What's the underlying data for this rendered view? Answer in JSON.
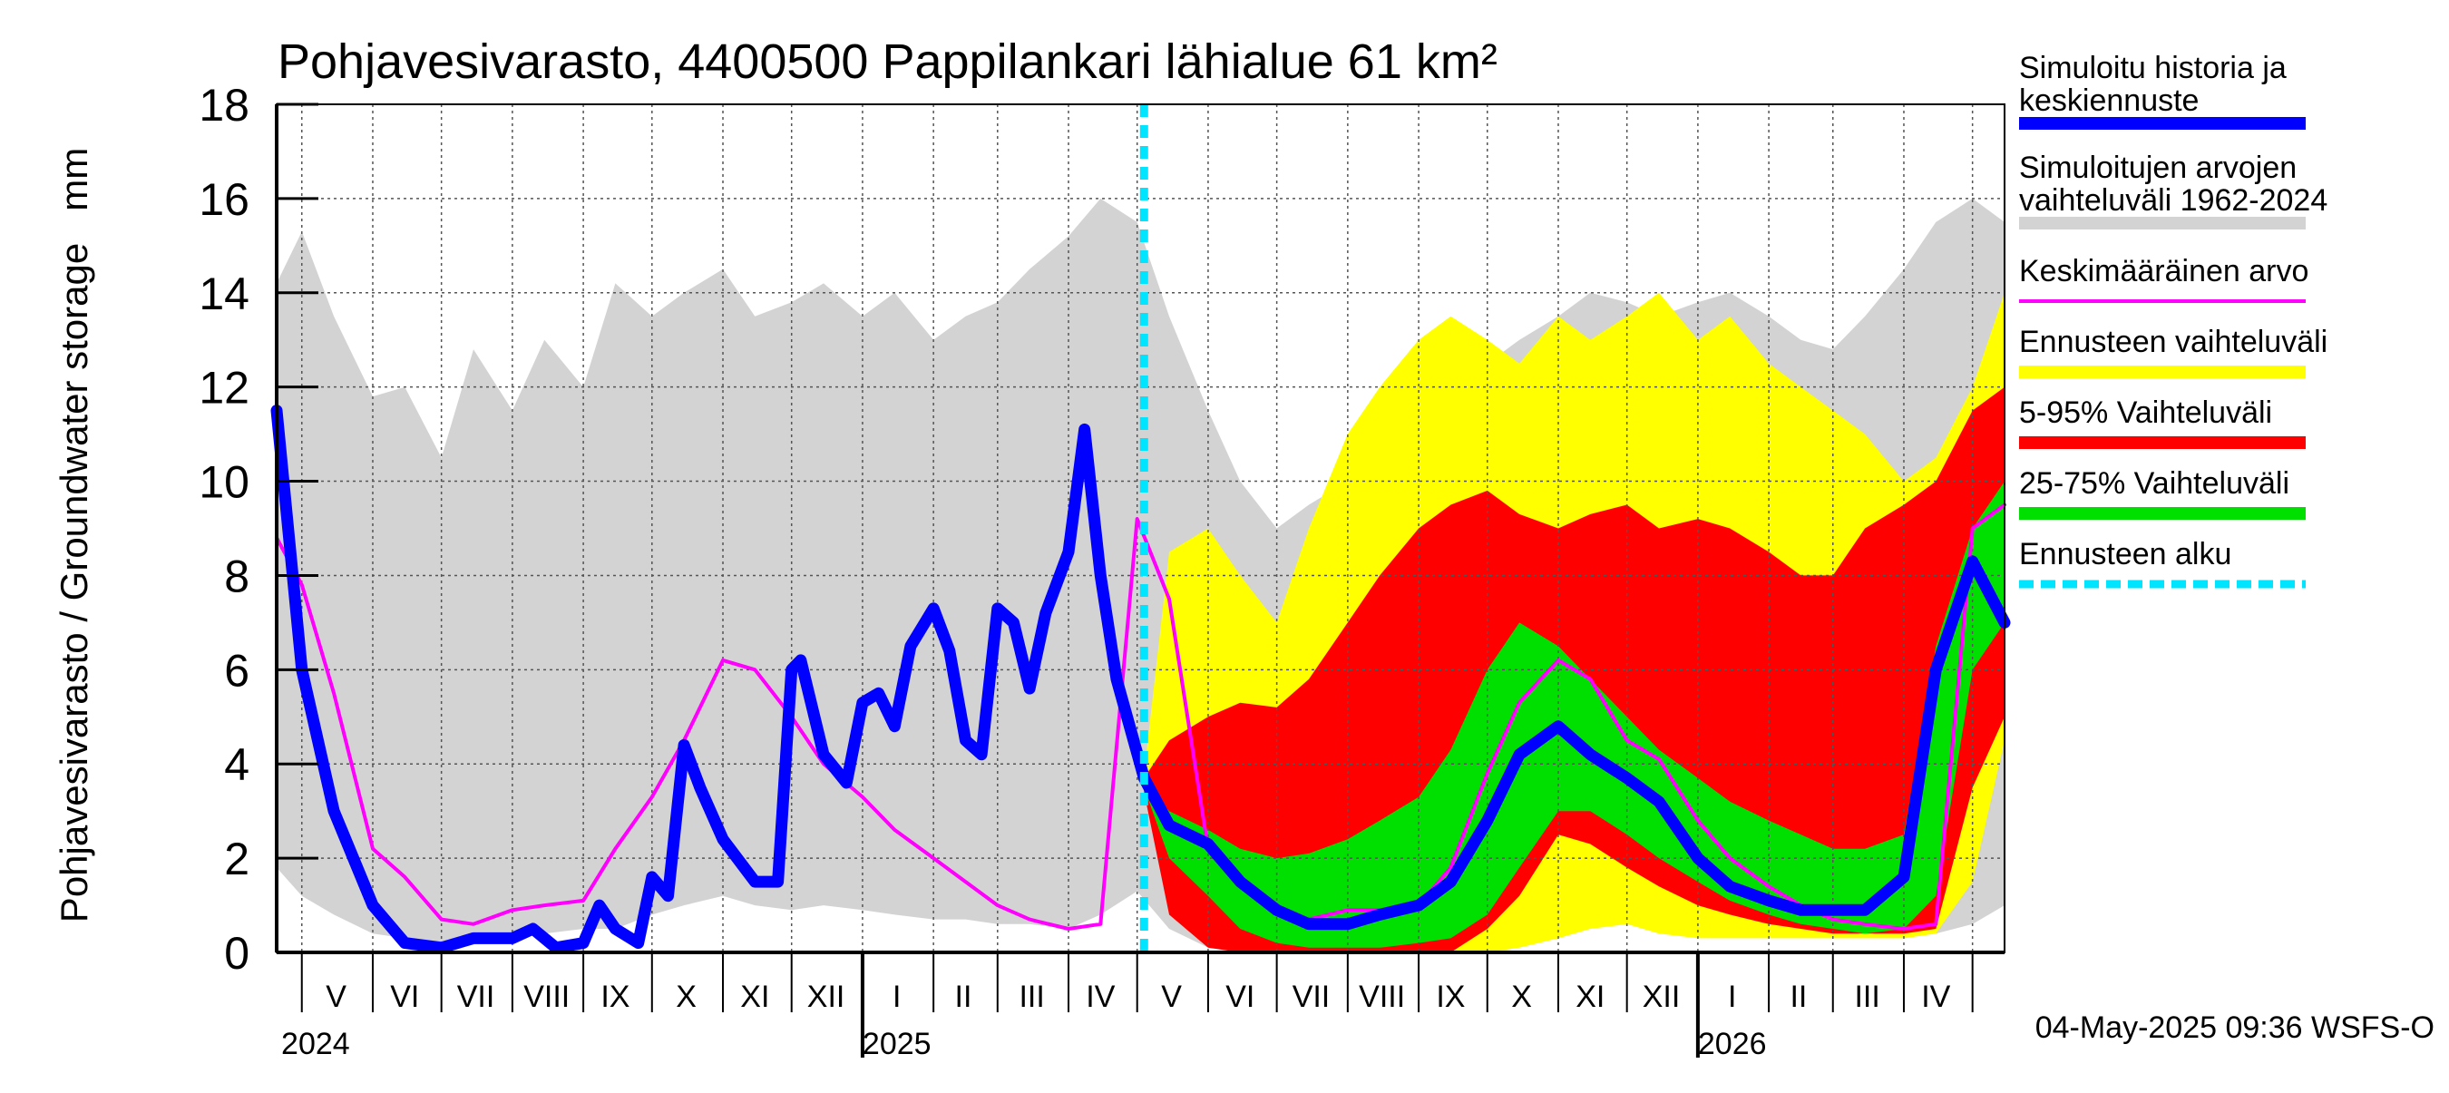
{
  "chart_data": {
    "type": "area",
    "title": "Pohjavesivarasto, 4400500 Pappilankari lähialue 61 km²",
    "ylabel": "Pohjavesivarasto / Groundwater storage   mm",
    "ylim": [
      0,
      18
    ],
    "yticks": [
      0,
      2,
      4,
      6,
      8,
      10,
      12,
      14,
      16,
      18
    ],
    "grid": true,
    "legend_position": "right",
    "x_range": [
      "2024-04-20",
      "2026-05-15"
    ],
    "month_labels": [
      {
        "label": "V",
        "date": "2024-05-16"
      },
      {
        "label": "VI",
        "date": "2024-06-15"
      },
      {
        "label": "VII",
        "date": "2024-07-16"
      },
      {
        "label": "VIII",
        "date": "2024-08-16"
      },
      {
        "label": "IX",
        "date": "2024-09-15"
      },
      {
        "label": "X",
        "date": "2024-10-16"
      },
      {
        "label": "XI",
        "date": "2024-11-15"
      },
      {
        "label": "XII",
        "date": "2024-12-16"
      },
      {
        "label": "I",
        "date": "2025-01-16"
      },
      {
        "label": "II",
        "date": "2025-02-14"
      },
      {
        "label": "III",
        "date": "2025-03-16"
      },
      {
        "label": "IV",
        "date": "2025-04-15"
      },
      {
        "label": "V",
        "date": "2025-05-16"
      },
      {
        "label": "VI",
        "date": "2025-06-15"
      },
      {
        "label": "VII",
        "date": "2025-07-16"
      },
      {
        "label": "VIII",
        "date": "2025-08-16"
      },
      {
        "label": "IX",
        "date": "2025-09-15"
      },
      {
        "label": "X",
        "date": "2025-10-16"
      },
      {
        "label": "XI",
        "date": "2025-11-15"
      },
      {
        "label": "XII",
        "date": "2025-12-16"
      },
      {
        "label": "I",
        "date": "2026-01-16"
      },
      {
        "label": "II",
        "date": "2026-02-14"
      },
      {
        "label": "III",
        "date": "2026-03-16"
      },
      {
        "label": "IV",
        "date": "2026-04-15"
      }
    ],
    "month_boundaries": [
      "2024-05-01",
      "2024-06-01",
      "2024-07-01",
      "2024-08-01",
      "2024-09-01",
      "2024-10-01",
      "2024-11-01",
      "2024-12-01",
      "2025-01-01",
      "2025-02-01",
      "2025-03-01",
      "2025-04-01",
      "2025-05-01",
      "2025-06-01",
      "2025-07-01",
      "2025-08-01",
      "2025-09-01",
      "2025-10-01",
      "2025-11-01",
      "2025-12-01",
      "2026-01-01",
      "2026-02-01",
      "2026-03-01",
      "2026-04-01",
      "2026-05-01"
    ],
    "year_labels": [
      {
        "label": "2024",
        "date": "2024-04-22"
      },
      {
        "label": "2025",
        "date": "2025-01-01"
      },
      {
        "label": "2026",
        "date": "2026-01-01"
      }
    ],
    "year_boundaries": [
      "2025-01-01",
      "2026-01-01"
    ],
    "forecast_start": "2025-05-04",
    "series": [
      {
        "name": "Simuloitujen arvojen vaihteluväli 1962-2024",
        "kind": "band",
        "color": "#d3d3d3",
        "x": [
          "2024-04-20",
          "2024-05-01",
          "2024-05-15",
          "2024-06-01",
          "2024-06-15",
          "2024-07-01",
          "2024-07-15",
          "2024-08-01",
          "2024-08-15",
          "2024-09-01",
          "2024-09-15",
          "2024-10-01",
          "2024-10-15",
          "2024-11-01",
          "2024-11-15",
          "2024-12-01",
          "2024-12-15",
          "2025-01-01",
          "2025-01-15",
          "2025-02-01",
          "2025-02-15",
          "2025-03-01",
          "2025-03-15",
          "2025-04-01",
          "2025-04-15",
          "2025-05-01",
          "2025-05-15",
          "2025-06-01",
          "2025-06-15",
          "2025-07-01",
          "2025-07-15",
          "2025-08-01",
          "2025-08-15",
          "2025-09-01",
          "2025-09-15",
          "2025-10-01",
          "2025-10-15",
          "2025-11-01",
          "2025-11-15",
          "2025-12-01",
          "2025-12-15",
          "2026-01-01",
          "2026-01-15",
          "2026-02-01",
          "2026-02-15",
          "2026-03-01",
          "2026-03-15",
          "2026-04-01",
          "2026-04-15",
          "2026-05-01",
          "2026-05-15"
        ],
        "upper": [
          14.2,
          15.3,
          13.5,
          11.8,
          12.0,
          10.5,
          12.8,
          11.5,
          13.0,
          12.0,
          14.2,
          13.5,
          14.0,
          14.5,
          13.5,
          13.8,
          14.2,
          13.5,
          14.0,
          13.0,
          13.5,
          13.8,
          14.5,
          15.2,
          16.0,
          15.5,
          13.5,
          11.5,
          10.0,
          9.0,
          9.5,
          10.0,
          10.5,
          11.0,
          12.0,
          12.5,
          13.0,
          13.5,
          14.0,
          13.8,
          13.5,
          13.8,
          14.0,
          13.5,
          13.0,
          12.8,
          13.5,
          14.5,
          15.5,
          16.0,
          15.5
        ],
        "lower": [
          1.8,
          1.2,
          0.8,
          0.4,
          0.3,
          0.2,
          0.3,
          0.3,
          0.4,
          0.5,
          0.5,
          0.8,
          1.0,
          1.2,
          1.0,
          0.9,
          1.0,
          0.9,
          0.8,
          0.7,
          0.7,
          0.6,
          0.6,
          0.5,
          0.8,
          1.3,
          0.5,
          0.1,
          0.0,
          0.0,
          0.0,
          0.0,
          0.1,
          0.2,
          0.2,
          0.3,
          0.4,
          0.5,
          0.6,
          0.6,
          0.5,
          0.5,
          0.4,
          0.4,
          0.3,
          0.3,
          0.3,
          0.3,
          0.4,
          0.6,
          1.0
        ]
      },
      {
        "name": "Ennusteen vaihteluväli",
        "kind": "band",
        "color": "#ffff00",
        "x": [
          "2025-05-04",
          "2025-05-15",
          "2025-06-01",
          "2025-06-15",
          "2025-07-01",
          "2025-07-15",
          "2025-08-01",
          "2025-08-15",
          "2025-09-01",
          "2025-09-15",
          "2025-10-01",
          "2025-10-15",
          "2025-11-01",
          "2025-11-15",
          "2025-12-01",
          "2025-12-15",
          "2026-01-01",
          "2026-01-15",
          "2026-02-01",
          "2026-02-15",
          "2026-03-01",
          "2026-03-15",
          "2026-04-01",
          "2026-04-15",
          "2026-05-01",
          "2026-05-15"
        ],
        "upper": [
          3.8,
          8.5,
          9.0,
          8.0,
          7.0,
          9.0,
          11.0,
          12.0,
          13.0,
          13.5,
          13.0,
          12.5,
          13.5,
          13.0,
          13.5,
          14.0,
          13.0,
          13.5,
          12.5,
          12.0,
          11.5,
          11.0,
          10.0,
          10.5,
          12.0,
          14.0
        ],
        "lower": [
          3.5,
          1.2,
          0.2,
          0.0,
          0.0,
          0.0,
          0.0,
          0.0,
          0.0,
          0.0,
          0.0,
          0.1,
          0.3,
          0.5,
          0.6,
          0.4,
          0.3,
          0.3,
          0.3,
          0.3,
          0.3,
          0.3,
          0.3,
          0.4,
          1.5,
          4.5
        ]
      },
      {
        "name": "5-95% Vaihteluväli",
        "kind": "band",
        "color": "#ff0000",
        "x": [
          "2025-05-04",
          "2025-05-15",
          "2025-06-01",
          "2025-06-15",
          "2025-07-01",
          "2025-07-15",
          "2025-08-01",
          "2025-08-15",
          "2025-09-01",
          "2025-09-15",
          "2025-10-01",
          "2025-10-15",
          "2025-11-01",
          "2025-11-15",
          "2025-12-01",
          "2025-12-15",
          "2026-01-01",
          "2026-01-15",
          "2026-02-01",
          "2026-02-15",
          "2026-03-01",
          "2026-03-15",
          "2026-04-01",
          "2026-04-15",
          "2026-05-01",
          "2026-05-15"
        ],
        "upper": [
          3.7,
          4.5,
          5.0,
          5.3,
          5.2,
          5.8,
          7.0,
          8.0,
          9.0,
          9.5,
          9.8,
          9.3,
          9.0,
          9.3,
          9.5,
          9.0,
          9.2,
          9.0,
          8.5,
          8.0,
          8.0,
          9.0,
          9.5,
          10.0,
          11.5,
          12.0
        ],
        "lower": [
          3.4,
          0.8,
          0.1,
          0.0,
          0.0,
          0.0,
          0.0,
          0.0,
          0.0,
          0.0,
          0.5,
          1.2,
          2.5,
          2.3,
          1.8,
          1.4,
          1.0,
          0.8,
          0.6,
          0.5,
          0.4,
          0.4,
          0.4,
          0.5,
          3.5,
          5.0
        ]
      },
      {
        "name": "25-75% Vaihteluväli",
        "kind": "band",
        "color": "#00e000",
        "x": [
          "2025-05-04",
          "2025-05-15",
          "2025-06-01",
          "2025-06-15",
          "2025-07-01",
          "2025-07-15",
          "2025-08-01",
          "2025-08-15",
          "2025-09-01",
          "2025-09-15",
          "2025-10-01",
          "2025-10-15",
          "2025-11-01",
          "2025-11-15",
          "2025-12-01",
          "2025-12-15",
          "2026-01-01",
          "2026-01-15",
          "2026-02-01",
          "2026-02-15",
          "2026-03-01",
          "2026-03-15",
          "2026-04-01",
          "2026-04-15",
          "2026-05-01",
          "2026-05-15"
        ],
        "upper": [
          3.6,
          3.0,
          2.6,
          2.2,
          2.0,
          2.1,
          2.4,
          2.8,
          3.3,
          4.3,
          6.0,
          7.0,
          6.5,
          5.8,
          5.0,
          4.3,
          3.7,
          3.2,
          2.8,
          2.5,
          2.2,
          2.2,
          2.5,
          6.5,
          9.0,
          10.0
        ],
        "lower": [
          3.5,
          2.0,
          1.2,
          0.5,
          0.2,
          0.1,
          0.1,
          0.1,
          0.2,
          0.3,
          0.8,
          1.8,
          3.0,
          3.0,
          2.5,
          2.0,
          1.5,
          1.1,
          0.8,
          0.6,
          0.5,
          0.4,
          0.5,
          1.2,
          6.0,
          7.0
        ]
      },
      {
        "name": "Keskimääräinen arvo",
        "kind": "line",
        "color": "#ff00ff",
        "width": 4,
        "x": [
          "2024-04-20",
          "2024-05-01",
          "2024-05-15",
          "2024-06-01",
          "2024-06-15",
          "2024-07-01",
          "2024-07-15",
          "2024-08-01",
          "2024-08-15",
          "2024-09-01",
          "2024-09-15",
          "2024-10-01",
          "2024-10-15",
          "2024-11-01",
          "2024-11-15",
          "2024-12-01",
          "2024-12-15",
          "2025-01-01",
          "2025-01-15",
          "2025-02-01",
          "2025-02-15",
          "2025-03-01",
          "2025-03-15",
          "2025-04-01",
          "2025-04-15",
          "2025-05-01",
          "2025-05-15",
          "2025-06-01",
          "2025-06-15",
          "2025-07-01",
          "2025-07-15",
          "2025-08-01",
          "2025-08-15",
          "2025-09-01",
          "2025-09-15",
          "2025-10-01",
          "2025-10-15",
          "2025-11-01",
          "2025-11-15",
          "2025-12-01",
          "2025-12-15",
          "2026-01-01",
          "2026-01-15",
          "2026-02-01",
          "2026-02-15",
          "2026-03-01",
          "2026-03-15",
          "2026-04-01",
          "2026-04-15",
          "2026-05-01",
          "2026-05-15"
        ],
        "y": [
          8.8,
          7.8,
          5.5,
          2.2,
          1.6,
          0.7,
          0.6,
          0.9,
          1.0,
          1.1,
          2.2,
          3.3,
          4.5,
          6.2,
          6.0,
          5.0,
          4.0,
          3.3,
          2.6,
          2.0,
          1.5,
          1.0,
          0.7,
          0.5,
          0.6,
          9.2,
          7.5,
          2.2,
          1.4,
          0.8,
          0.7,
          0.9,
          0.9,
          1.0,
          1.8,
          3.8,
          5.3,
          6.2,
          5.8,
          4.5,
          4.1,
          2.8,
          2.0,
          1.4,
          1.0,
          0.7,
          0.6,
          0.5,
          0.6,
          9.0,
          9.5
        ]
      },
      {
        "name": "Simuloitu historia ja keskiennuste",
        "kind": "line",
        "color": "#0000ff",
        "width": 13,
        "x": [
          "2024-04-20",
          "2024-05-01",
          "2024-05-15",
          "2024-06-01",
          "2024-06-15",
          "2024-07-01",
          "2024-07-15",
          "2024-08-01",
          "2024-08-10",
          "2024-08-20",
          "2024-09-01",
          "2024-09-08",
          "2024-09-15",
          "2024-09-25",
          "2024-10-01",
          "2024-10-08",
          "2024-10-15",
          "2024-10-22",
          "2024-11-01",
          "2024-11-15",
          "2024-11-25",
          "2024-12-01",
          "2024-12-05",
          "2024-12-15",
          "2024-12-25",
          "2025-01-01",
          "2025-01-08",
          "2025-01-15",
          "2025-01-22",
          "2025-02-01",
          "2025-02-08",
          "2025-02-15",
          "2025-02-22",
          "2025-03-01",
          "2025-03-08",
          "2025-03-15",
          "2025-03-22",
          "2025-04-01",
          "2025-04-08",
          "2025-04-15",
          "2025-04-22",
          "2025-05-04",
          "2025-05-15",
          "2025-06-01",
          "2025-06-15",
          "2025-07-01",
          "2025-07-15",
          "2025-08-01",
          "2025-08-15",
          "2025-09-01",
          "2025-09-15",
          "2025-10-01",
          "2025-10-15",
          "2025-11-01",
          "2025-11-15",
          "2025-12-01",
          "2025-12-15",
          "2026-01-01",
          "2026-01-15",
          "2026-02-01",
          "2026-02-15",
          "2026-03-01",
          "2026-03-15",
          "2026-04-01",
          "2026-04-15",
          "2026-05-01",
          "2026-05-15"
        ],
        "y": [
          11.5,
          6.0,
          3.0,
          1.0,
          0.2,
          0.1,
          0.3,
          0.3,
          0.5,
          0.1,
          0.2,
          1.0,
          0.5,
          0.2,
          1.6,
          1.2,
          4.4,
          3.5,
          2.4,
          1.5,
          1.5,
          6.0,
          6.2,
          4.2,
          3.6,
          5.3,
          5.5,
          4.8,
          6.5,
          7.3,
          6.4,
          4.5,
          4.2,
          7.3,
          7.0,
          5.6,
          7.2,
          8.5,
          11.1,
          8.0,
          5.8,
          3.7,
          2.7,
          2.3,
          1.5,
          0.9,
          0.6,
          0.6,
          0.8,
          1.0,
          1.5,
          2.8,
          4.2,
          4.8,
          4.2,
          3.7,
          3.2,
          2.0,
          1.4,
          1.1,
          0.9,
          0.9,
          0.9,
          1.6,
          6.0,
          8.3,
          7.0
        ]
      },
      {
        "name": "Ennusteen alku",
        "kind": "vline",
        "color": "#00e5ff",
        "width": 9
      }
    ],
    "legend": [
      {
        "label": "Simuloitu historia ja keskiennuste",
        "color": "#0000ff",
        "style": "thick"
      },
      {
        "label": "Simuloitujen arvojen vaihteluväli 1962-2024",
        "color": "#d3d3d3",
        "style": "thick"
      },
      {
        "label": "Keskimääräinen arvo",
        "color": "#ff00ff",
        "style": "thin"
      },
      {
        "label": "Ennusteen vaihteluväli",
        "color": "#ffff00",
        "style": "thick"
      },
      {
        "label": "5-95% Vaihteluväli",
        "color": "#ff0000",
        "style": "thick"
      },
      {
        "label": "25-75% Vaihteluväli",
        "color": "#00e000",
        "style": "thick"
      },
      {
        "label": "Ennusteen alku",
        "color": "#00e5ff",
        "style": "dashed"
      }
    ],
    "timestamp": "04-May-2025 09:36 WSFS-O"
  }
}
